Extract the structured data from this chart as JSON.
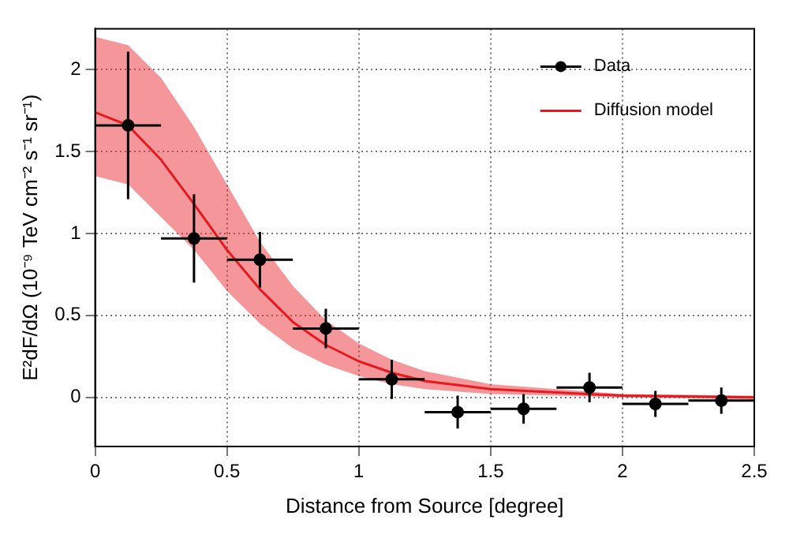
{
  "chart_data": {
    "type": "scatter",
    "xlabel": "Distance from Source [degree]",
    "ylabel": "E²dF/dΩ (10⁻⁹ TeV cm⁻² s⁻¹ sr⁻¹)",
    "xlim": [
      0,
      2.5
    ],
    "xticks": [
      0,
      0.5,
      1,
      1.5,
      2,
      2.5
    ],
    "ylim": [
      -0.3,
      2.25
    ],
    "yticks": [
      0,
      0.5,
      1,
      1.5,
      2
    ],
    "grid": true,
    "legend": "top right",
    "series": [
      {
        "name": "Data",
        "marker": "circle",
        "color": "#000000",
        "x": [
          0.125,
          0.375,
          0.625,
          0.875,
          1.125,
          1.375,
          1.625,
          1.875,
          2.125,
          2.375
        ],
        "values": [
          1.66,
          0.97,
          0.84,
          0.42,
          0.11,
          -0.09,
          -0.07,
          0.06,
          -0.04,
          -0.02
        ],
        "errors": [
          0.45,
          0.27,
          0.17,
          0.12,
          0.12,
          0.1,
          0.09,
          0.09,
          0.08,
          0.08
        ],
        "xerrors": [
          0.125,
          0.125,
          0.125,
          0.125,
          0.125,
          0.125,
          0.125,
          0.125,
          0.125,
          0.125
        ]
      },
      {
        "name": "Diffusion model",
        "type": "line",
        "color": "#e8191e",
        "x": [
          0,
          0.125,
          0.25,
          0.375,
          0.5,
          0.625,
          0.75,
          0.875,
          1,
          1.125,
          1.25,
          1.5,
          1.75,
          2,
          2.5
        ],
        "values": [
          1.74,
          1.66,
          1.45,
          1.18,
          0.9,
          0.66,
          0.46,
          0.32,
          0.22,
          0.15,
          0.1,
          0.05,
          0.03,
          0.01,
          0
        ],
        "lower": [
          1.35,
          1.3,
          1.1,
          0.9,
          0.65,
          0.45,
          0.3,
          0.2,
          0.13,
          0.08,
          0.05,
          0.02,
          0.01,
          0,
          -0.01
        ],
        "upper": [
          2.2,
          2.15,
          1.95,
          1.65,
          1.3,
          0.95,
          0.68,
          0.47,
          0.33,
          0.23,
          0.16,
          0.08,
          0.05,
          0.02,
          0.01
        ]
      }
    ]
  }
}
